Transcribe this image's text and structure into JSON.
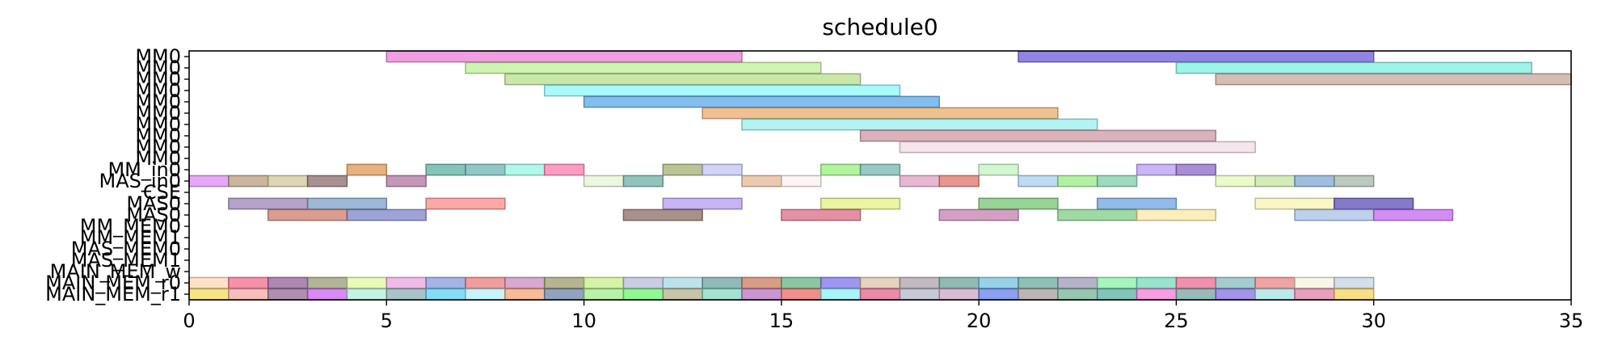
{
  "chart_data": {
    "type": "gantt",
    "title": "schedule0",
    "xlabel": "",
    "ylabel": "",
    "xlim": [
      0,
      35
    ],
    "x_ticks": [
      0,
      5,
      10,
      15,
      20,
      25,
      30,
      35
    ],
    "grid": false,
    "rows": [
      "MM0",
      "MM0",
      "MM0",
      "MM0",
      "MM0",
      "MM0",
      "MM0",
      "MM0",
      "MM0",
      "MM0",
      "MM_in0",
      "MAS_in0",
      "CSE",
      "MAS0",
      "MAS0",
      "MM_MEM0",
      "MM_MEM1",
      "MAS_MEM0",
      "MAS_MEM1",
      "MAIN_MEM_w",
      "MAIN_MEM_r0",
      "MAIN_MEM_r1"
    ],
    "bars": [
      {
        "row": 0,
        "start": 5,
        "end": 14,
        "color": "#ec7fd8"
      },
      {
        "row": 0,
        "start": 21,
        "end": 30,
        "color": "#6c5bd8"
      },
      {
        "row": 1,
        "start": 7,
        "end": 16,
        "color": "#bff098"
      },
      {
        "row": 1,
        "start": 25,
        "end": 34,
        "color": "#7cf0e0"
      },
      {
        "row": 2,
        "start": 8,
        "end": 17,
        "color": "#b8e08c"
      },
      {
        "row": 2,
        "start": 26,
        "end": 35,
        "color": "#c4a89c"
      },
      {
        "row": 3,
        "start": 9,
        "end": 18,
        "color": "#8cf8f8"
      },
      {
        "row": 4,
        "start": 10,
        "end": 19,
        "color": "#5aa8ec"
      },
      {
        "row": 5,
        "start": 13,
        "end": 22,
        "color": "#ecac6c"
      },
      {
        "row": 6,
        "start": 14,
        "end": 23,
        "color": "#98f0ec"
      },
      {
        "row": 7,
        "start": 17,
        "end": 26,
        "color": "#cc98a4"
      },
      {
        "row": 8,
        "start": 18,
        "end": 27,
        "color": "#f2dce6"
      },
      {
        "row": 10,
        "start": 4,
        "end": 5,
        "color": "#e09850"
      },
      {
        "row": 10,
        "start": 6,
        "end": 7,
        "color": "#5cb0a0"
      },
      {
        "row": 10,
        "start": 7,
        "end": 8,
        "color": "#6cb4b4"
      },
      {
        "row": 10,
        "start": 8,
        "end": 9,
        "color": "#98f4e0"
      },
      {
        "row": 10,
        "start": 9,
        "end": 10,
        "color": "#fc7cb0"
      },
      {
        "row": 10,
        "start": 12,
        "end": 13,
        "color": "#a4b074"
      },
      {
        "row": 10,
        "start": 13,
        "end": 14,
        "color": "#c4c4f4"
      },
      {
        "row": 10,
        "start": 16,
        "end": 17,
        "color": "#98f07c"
      },
      {
        "row": 10,
        "start": 17,
        "end": 18,
        "color": "#74b8b0"
      },
      {
        "row": 10,
        "start": 20,
        "end": 21,
        "color": "#c4f4c4"
      },
      {
        "row": 10,
        "start": 24,
        "end": 25,
        "color": "#b89cf4"
      },
      {
        "row": 10,
        "start": 25,
        "end": 26,
        "color": "#8c68c4"
      },
      {
        "row": 11,
        "start": 0,
        "end": 1,
        "color": "#dc8cf4"
      },
      {
        "row": 11,
        "start": 1,
        "end": 2,
        "color": "#b89c7c"
      },
      {
        "row": 11,
        "start": 2,
        "end": 3,
        "color": "#d0c898"
      },
      {
        "row": 11,
        "start": 3,
        "end": 4,
        "color": "#8c6c6c"
      },
      {
        "row": 11,
        "start": 5,
        "end": 6,
        "color": "#b074a0"
      },
      {
        "row": 11,
        "start": 10,
        "end": 11,
        "color": "#e4f4d4"
      },
      {
        "row": 11,
        "start": 11,
        "end": 12,
        "color": "#6cb0a4"
      },
      {
        "row": 11,
        "start": 14,
        "end": 15,
        "color": "#e4b894"
      },
      {
        "row": 11,
        "start": 15,
        "end": 16,
        "color": "#fcf0f0"
      },
      {
        "row": 11,
        "start": 18,
        "end": 19,
        "color": "#e0a0c4"
      },
      {
        "row": 11,
        "start": 19,
        "end": 20,
        "color": "#e07468"
      },
      {
        "row": 11,
        "start": 21,
        "end": 22,
        "color": "#a8d0ec"
      },
      {
        "row": 11,
        "start": 22,
        "end": 23,
        "color": "#98ec84"
      },
      {
        "row": 11,
        "start": 23,
        "end": 24,
        "color": "#7cd0a8"
      },
      {
        "row": 11,
        "start": 26,
        "end": 27,
        "color": "#e4f8bc"
      },
      {
        "row": 11,
        "start": 27,
        "end": 28,
        "color": "#c4e4a4"
      },
      {
        "row": 11,
        "start": 28,
        "end": 29,
        "color": "#7ca8d4"
      },
      {
        "row": 11,
        "start": 29,
        "end": 30,
        "color": "#a4b8a8"
      },
      {
        "row": 13,
        "start": 1,
        "end": 3,
        "color": "#9c84b8"
      },
      {
        "row": 13,
        "start": 3,
        "end": 5,
        "color": "#7ca0c8"
      },
      {
        "row": 13,
        "start": 6,
        "end": 8,
        "color": "#fc8c8c"
      },
      {
        "row": 13,
        "start": 12,
        "end": 14,
        "color": "#b49cf4"
      },
      {
        "row": 13,
        "start": 16,
        "end": 18,
        "color": "#e4f084"
      },
      {
        "row": 13,
        "start": 20,
        "end": 22,
        "color": "#74c474"
      },
      {
        "row": 13,
        "start": 23,
        "end": 25,
        "color": "#6ca4e0"
      },
      {
        "row": 13,
        "start": 27,
        "end": 29,
        "color": "#f8f4b4"
      },
      {
        "row": 13,
        "start": 29,
        "end": 31,
        "color": "#5c4cb8"
      },
      {
        "row": 14,
        "start": 2,
        "end": 4,
        "color": "#d07c6c"
      },
      {
        "row": 14,
        "start": 4,
        "end": 6,
        "color": "#7c84c8"
      },
      {
        "row": 14,
        "start": 11,
        "end": 13,
        "color": "#8c6c64"
      },
      {
        "row": 14,
        "start": 15,
        "end": 17,
        "color": "#dc6c84"
      },
      {
        "row": 14,
        "start": 19,
        "end": 21,
        "color": "#c480b0"
      },
      {
        "row": 14,
        "start": 22,
        "end": 24,
        "color": "#80cc84"
      },
      {
        "row": 14,
        "start": 24,
        "end": 26,
        "color": "#fce8a4"
      },
      {
        "row": 14,
        "start": 28,
        "end": 30,
        "color": "#a8c0e4"
      },
      {
        "row": 14,
        "start": 30,
        "end": 32,
        "color": "#c468f0"
      },
      {
        "row": 20,
        "start": 0,
        "end": 1,
        "color": "#fcd8b4"
      },
      {
        "row": 20,
        "start": 1,
        "end": 2,
        "color": "#f46c8c"
      },
      {
        "row": 20,
        "start": 2,
        "end": 3,
        "color": "#946098"
      },
      {
        "row": 20,
        "start": 3,
        "end": 4,
        "color": "#989c74"
      },
      {
        "row": 20,
        "start": 4,
        "end": 5,
        "color": "#e0f89c"
      },
      {
        "row": 20,
        "start": 5,
        "end": 6,
        "color": "#eca4e0"
      },
      {
        "row": 20,
        "start": 6,
        "end": 7,
        "color": "#849cdc"
      },
      {
        "row": 20,
        "start": 7,
        "end": 8,
        "color": "#ec7c7c"
      },
      {
        "row": 20,
        "start": 8,
        "end": 9,
        "color": "#cc8cc0"
      },
      {
        "row": 20,
        "start": 9,
        "end": 10,
        "color": "#9c9c6c"
      },
      {
        "row": 20,
        "start": 10,
        "end": 11,
        "color": "#c8f088"
      },
      {
        "row": 20,
        "start": 11,
        "end": 12,
        "color": "#b8bcdc"
      },
      {
        "row": 20,
        "start": 12,
        "end": 13,
        "color": "#a8d8e4"
      },
      {
        "row": 20,
        "start": 13,
        "end": 14,
        "color": "#6ca4a4"
      },
      {
        "row": 20,
        "start": 14,
        "end": 15,
        "color": "#cc7c5c"
      },
      {
        "row": 20,
        "start": 15,
        "end": 16,
        "color": "#64b480"
      },
      {
        "row": 20,
        "start": 16,
        "end": 17,
        "color": "#7c74ec"
      },
      {
        "row": 20,
        "start": 17,
        "end": 18,
        "color": "#dcc4a8"
      },
      {
        "row": 20,
        "start": 18,
        "end": 19,
        "color": "#aca4ac"
      },
      {
        "row": 20,
        "start": 19,
        "end": 20,
        "color": "#6ca498"
      },
      {
        "row": 20,
        "start": 20,
        "end": 21,
        "color": "#74c4e0"
      },
      {
        "row": 20,
        "start": 21,
        "end": 22,
        "color": "#68ac9c"
      },
      {
        "row": 20,
        "start": 22,
        "end": 23,
        "color": "#9c98b8"
      },
      {
        "row": 20,
        "start": 23,
        "end": 24,
        "color": "#88f0a8"
      },
      {
        "row": 20,
        "start": 24,
        "end": 25,
        "color": "#74dcbc"
      },
      {
        "row": 20,
        "start": 25,
        "end": 26,
        "color": "#ec6c94"
      },
      {
        "row": 20,
        "start": 26,
        "end": 27,
        "color": "#84bcbc"
      },
      {
        "row": 20,
        "start": 27,
        "end": 28,
        "color": "#ec8484"
      },
      {
        "row": 20,
        "start": 28,
        "end": 29,
        "color": "#f4f4dc"
      },
      {
        "row": 20,
        "start": 29,
        "end": 30,
        "color": "#c4d4e4"
      },
      {
        "row": 21,
        "start": 0,
        "end": 1,
        "color": "#f4dc5c"
      },
      {
        "row": 21,
        "start": 1,
        "end": 2,
        "color": "#f4a8a4"
      },
      {
        "row": 21,
        "start": 2,
        "end": 3,
        "color": "#946c94"
      },
      {
        "row": 21,
        "start": 3,
        "end": 4,
        "color": "#cc64f0"
      },
      {
        "row": 21,
        "start": 4,
        "end": 5,
        "color": "#b4ecdc"
      },
      {
        "row": 21,
        "start": 5,
        "end": 6,
        "color": "#8cb0b0"
      },
      {
        "row": 21,
        "start": 6,
        "end": 7,
        "color": "#5cd0f4"
      },
      {
        "row": 21,
        "start": 7,
        "end": 8,
        "color": "#b4f0f8"
      },
      {
        "row": 21,
        "start": 8,
        "end": 9,
        "color": "#f4a474"
      },
      {
        "row": 21,
        "start": 9,
        "end": 10,
        "color": "#6c84a8"
      },
      {
        "row": 21,
        "start": 10,
        "end": 11,
        "color": "#a4ec8c"
      },
      {
        "row": 21,
        "start": 11,
        "end": 12,
        "color": "#6cf470"
      },
      {
        "row": 21,
        "start": 12,
        "end": 13,
        "color": "#b4b08c"
      },
      {
        "row": 21,
        "start": 13,
        "end": 14,
        "color": "#88d8c0"
      },
      {
        "row": 21,
        "start": 14,
        "end": 15,
        "color": "#b874c4"
      },
      {
        "row": 21,
        "start": 15,
        "end": 16,
        "color": "#e86c64"
      },
      {
        "row": 21,
        "start": 16,
        "end": 17,
        "color": "#8cf0f4"
      },
      {
        "row": 21,
        "start": 17,
        "end": 18,
        "color": "#e4648c"
      },
      {
        "row": 21,
        "start": 18,
        "end": 19,
        "color": "#b4b8c8"
      },
      {
        "row": 21,
        "start": 19,
        "end": 20,
        "color": "#cca4c4"
      },
      {
        "row": 21,
        "start": 20,
        "end": 21,
        "color": "#6480ec"
      },
      {
        "row": 21,
        "start": 21,
        "end": 22,
        "color": "#a49c9c"
      },
      {
        "row": 21,
        "start": 22,
        "end": 23,
        "color": "#74b494"
      },
      {
        "row": 21,
        "start": 23,
        "end": 24,
        "color": "#5cb0a4"
      },
      {
        "row": 21,
        "start": 24,
        "end": 25,
        "color": "#f47cd8"
      },
      {
        "row": 21,
        "start": 25,
        "end": 26,
        "color": "#74a4a0"
      },
      {
        "row": 21,
        "start": 26,
        "end": 27,
        "color": "#8470e0"
      },
      {
        "row": 21,
        "start": 27,
        "end": 28,
        "color": "#a4e4e0"
      },
      {
        "row": 21,
        "start": 28,
        "end": 29,
        "color": "#e080a8"
      },
      {
        "row": 21,
        "start": 29,
        "end": 30,
        "color": "#f4d45c"
      }
    ]
  }
}
